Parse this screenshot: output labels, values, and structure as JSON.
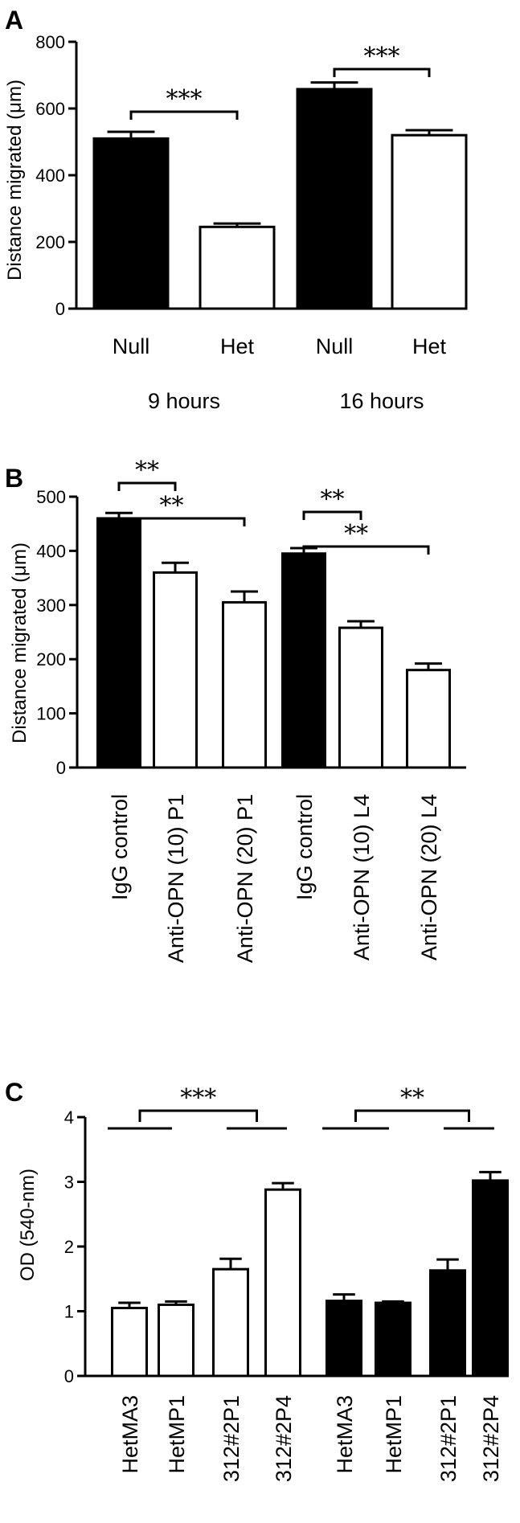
{
  "chart_data": [
    {
      "panel": "A",
      "type": "bar",
      "ylabel": "Distance migrated (μm)",
      "ylim": [
        0,
        800
      ],
      "yticks": [
        0,
        200,
        400,
        600,
        800
      ],
      "categories": [
        "Null",
        "Het",
        "Null",
        "Het"
      ],
      "groups": [
        {
          "label": "9 hours",
          "indices": [
            0,
            1
          ]
        },
        {
          "label": "16 hours",
          "indices": [
            2,
            3
          ]
        }
      ],
      "values": [
        510,
        245,
        658,
        520
      ],
      "errors": [
        20,
        10,
        20,
        15
      ],
      "fills": [
        "black",
        "white",
        "black",
        "white"
      ],
      "significance": [
        {
          "from": 0,
          "to": 1,
          "label": "***"
        },
        {
          "from": 2,
          "to": 3,
          "label": "***"
        }
      ],
      "grid": false
    },
    {
      "panel": "B",
      "type": "bar",
      "ylabel": "Distance migrated (μm)",
      "ylim": [
        0,
        500
      ],
      "yticks": [
        0,
        100,
        200,
        300,
        400,
        500
      ],
      "categories": [
        "IgG control",
        "Anti-OPN (10) P1",
        "Anti-OPN (20) P1",
        "IgG control",
        "Anti-OPN (10) L4",
        "Anti-OPN (20) L4"
      ],
      "values": [
        460,
        360,
        305,
        395,
        258,
        180
      ],
      "errors": [
        10,
        18,
        20,
        10,
        12,
        12
      ],
      "fills": [
        "black",
        "white",
        "white",
        "black",
        "white",
        "white"
      ],
      "significance": [
        {
          "from": 0,
          "to": 1,
          "label": "**"
        },
        {
          "from": 0,
          "to": 2,
          "label": "**"
        },
        {
          "from": 3,
          "to": 4,
          "label": "**"
        },
        {
          "from": 3,
          "to": 5,
          "label": "**"
        }
      ],
      "grid": false
    },
    {
      "panel": "C",
      "type": "bar",
      "ylabel": "OD (540-nm)",
      "ylim": [
        0,
        4
      ],
      "yticks": [
        0,
        1,
        2,
        3,
        4
      ],
      "categories": [
        "HetMA3",
        "HetMP1",
        "312#2P1",
        "312#2P4",
        "HetMA3",
        "HetMP1",
        "312#2P1",
        "312#2P4"
      ],
      "values": [
        1.05,
        1.1,
        1.65,
        2.88,
        1.16,
        1.13,
        1.63,
        3.02
      ],
      "errors": [
        0.08,
        0.05,
        0.16,
        0.1,
        0.1,
        0.02,
        0.17,
        0.13
      ],
      "fills": [
        "white",
        "white",
        "white",
        "white",
        "black",
        "black",
        "black",
        "black"
      ],
      "significance": [
        {
          "from": 0,
          "to": 3,
          "label": "***"
        },
        {
          "from": 4,
          "to": 7,
          "label": "**"
        }
      ],
      "grid": false
    }
  ]
}
